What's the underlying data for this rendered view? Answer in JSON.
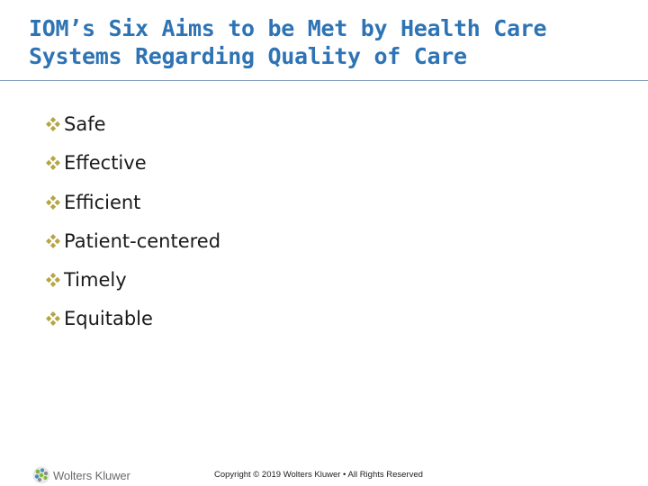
{
  "slide": {
    "title_line1": "IOM’s Six Aims to be Met by Health Care",
    "title_line2": "Systems Regarding Quality of Care",
    "bullets": [
      {
        "label": "Safe"
      },
      {
        "label": "Effective"
      },
      {
        "label": "Efficient"
      },
      {
        "label": "Patient-centered"
      },
      {
        "label": "Timely"
      },
      {
        "label": "Equitable"
      }
    ],
    "bullet_icon": "diamond-quad-bullet-icon"
  },
  "footer": {
    "logo_text": "Wolters Kluwer",
    "logo_icon": "wolters-kluwer-logo-icon",
    "copyright": "Copyright © 2019 Wolters Kluwer • All Rights Reserved"
  },
  "colors": {
    "title": "#2e74b5",
    "rule": "#7f9dba",
    "bullet": "#b5a642",
    "logo_green": "#86b841",
    "logo_blue": "#3e8fc9",
    "logo_gray": "#8a8a8a"
  }
}
